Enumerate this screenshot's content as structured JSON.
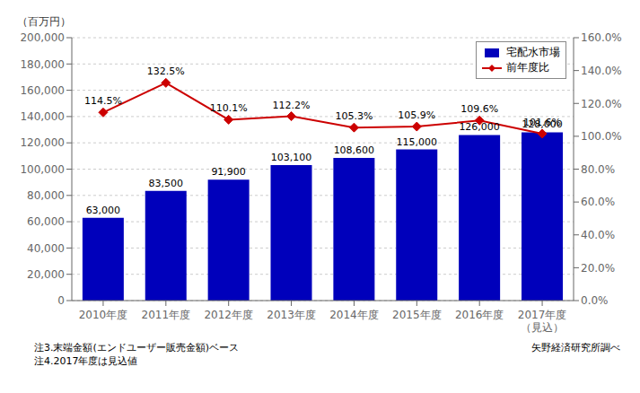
{
  "chart_data": {
    "type": "bar",
    "ylabel": "（百万円）",
    "categories": [
      "2010年度",
      "2011年度",
      "2012年度",
      "2013年度",
      "2014年度",
      "2015年度",
      "2016年度",
      "2017年度\n（見込）"
    ],
    "series": [
      {
        "name": "宅配水市場",
        "type": "bar",
        "color": "#0000BB",
        "values": [
          63000,
          83500,
          91900,
          103100,
          108600,
          115000,
          126000,
          128000
        ],
        "value_labels": [
          "63,000",
          "83,500",
          "91,900",
          "103,100",
          "108,600",
          "115,000",
          "126,000",
          "128,000"
        ]
      },
      {
        "name": "前年度比",
        "type": "line",
        "axis": "y2",
        "color": "#CC0000",
        "marker": "diamond",
        "values": [
          114.5,
          132.5,
          110.1,
          112.2,
          105.3,
          105.9,
          109.6,
          101.6
        ],
        "value_labels": [
          "114.5%",
          "132.5%",
          "110.1%",
          "112.2%",
          "105.3%",
          "105.9%",
          "109.6%",
          "101.6%"
        ]
      }
    ],
    "ylim": [
      0,
      200000
    ],
    "yticks": [
      0,
      {
        "value": 20000,
        "label": "20,000"
      },
      {
        "value": 40000,
        "label": "40,000"
      },
      {
        "value": 60000,
        "label": "60,000"
      },
      {
        "value": 80000,
        "label": "80,000"
      },
      {
        "value": 100000,
        "label": "100,000"
      },
      {
        "value": 120000,
        "label": "120,000"
      },
      {
        "value": 140000,
        "label": "140,000"
      },
      {
        "value": 160000,
        "label": "160,000"
      },
      {
        "value": 180000,
        "label": "180,000"
      },
      {
        "value": 200000,
        "label": "200,000"
      }
    ],
    "y2lim": [
      0,
      160.0
    ],
    "y2ticks": [
      {
        "value": 0.0,
        "label": "0.0%"
      },
      {
        "value": 20.0,
        "label": "20.0%"
      },
      {
        "value": 40.0,
        "label": "40.0%"
      },
      {
        "value": 60.0,
        "label": "60.0%"
      },
      {
        "value": 80.0,
        "label": "80.0%"
      },
      {
        "value": 100.0,
        "label": "100.0%"
      },
      {
        "value": 120.0,
        "label": "120.0%"
      },
      {
        "value": 140.0,
        "label": "140.0%"
      },
      {
        "value": 160.0,
        "label": "160.0%"
      }
    ],
    "grid": true,
    "legend": "upper right",
    "data_labels": true,
    "annotations": [
      "注3.末端金額(エンドユーザー販売金額)ベース",
      "注4.2017年度は見込値",
      "矢野経済研究所調べ"
    ]
  }
}
